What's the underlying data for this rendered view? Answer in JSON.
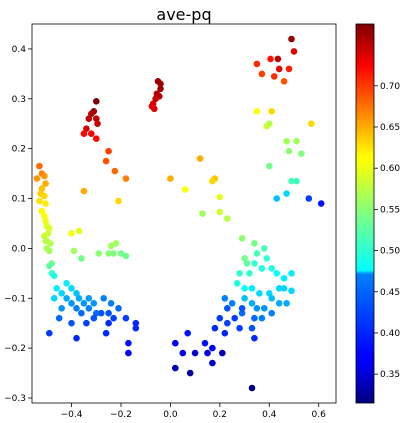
{
  "chart_data": {
    "type": "scatter",
    "title": "ave-pq",
    "xlabel": "",
    "ylabel": "",
    "xlim": [
      -0.56,
      0.67
    ],
    "ylim": [
      -0.31,
      0.45
    ],
    "xticks": [
      -0.4,
      -0.2,
      0.0,
      0.2,
      0.4,
      0.6
    ],
    "xtick_labels": [
      "−0.4",
      "−0.2",
      "0.0",
      "0.2",
      "0.4",
      "0.6"
    ],
    "yticks": [
      -0.3,
      -0.2,
      -0.1,
      0.0,
      0.1,
      0.2,
      0.3,
      0.4
    ],
    "ytick_labels": [
      "−0.3",
      "−0.2",
      "−0.1",
      "0.0",
      "0.1",
      "0.2",
      "0.3",
      "0.4"
    ],
    "grid": false,
    "colormap": "jet",
    "colorbar": {
      "min": 0.315,
      "max": 0.775,
      "ticks": [
        0.35,
        0.4,
        0.45,
        0.5,
        0.55,
        0.6,
        0.65,
        0.7
      ],
      "tick_labels": [
        "0.35",
        "0.40",
        "0.45",
        "0.50",
        "0.55",
        "0.60",
        "0.65",
        "0.70"
      ]
    },
    "points": [
      [
        0.435,
        0.38,
        0.745
      ],
      [
        0.44,
        0.36,
        0.725
      ],
      [
        0.405,
        0.38,
        0.71
      ],
      [
        0.37,
        0.35,
        0.69
      ],
      [
        0.35,
        0.37,
        0.7
      ],
      [
        0.49,
        0.42,
        0.765
      ],
      [
        0.5,
        0.395,
        0.735
      ],
      [
        0.48,
        0.36,
        0.705
      ],
      [
        0.46,
        0.335,
        0.68
      ],
      [
        0.42,
        0.345,
        0.7
      ],
      [
        -0.05,
        0.335,
        0.765
      ],
      [
        -0.04,
        0.32,
        0.76
      ],
      [
        -0.045,
        0.305,
        0.75
      ],
      [
        -0.06,
        0.3,
        0.74
      ],
      [
        -0.07,
        0.29,
        0.735
      ],
      [
        -0.065,
        0.28,
        0.73
      ],
      [
        -0.075,
        0.285,
        0.73
      ],
      [
        -0.055,
        0.31,
        0.75
      ],
      [
        -0.04,
        0.33,
        0.76
      ],
      [
        -0.3,
        0.295,
        0.775
      ],
      [
        -0.31,
        0.275,
        0.76
      ],
      [
        -0.32,
        0.27,
        0.75
      ],
      [
        -0.3,
        0.26,
        0.745
      ],
      [
        -0.33,
        0.26,
        0.745
      ],
      [
        -0.295,
        0.25,
        0.74
      ],
      [
        -0.34,
        0.24,
        0.735
      ],
      [
        -0.32,
        0.23,
        0.72
      ],
      [
        -0.3,
        0.22,
        0.715
      ],
      [
        -0.35,
        0.23,
        0.715
      ],
      [
        -0.25,
        0.195,
        0.69
      ],
      [
        -0.26,
        0.175,
        0.68
      ],
      [
        -0.225,
        0.155,
        0.67
      ],
      [
        -0.18,
        0.14,
        0.66
      ],
      [
        -0.35,
        0.115,
        0.64
      ],
      [
        -0.21,
        0.095,
        0.62
      ],
      [
        -0.53,
        0.165,
        0.67
      ],
      [
        -0.52,
        0.15,
        0.66
      ],
      [
        -0.54,
        0.14,
        0.65
      ],
      [
        -0.51,
        0.145,
        0.65
      ],
      [
        -0.505,
        0.13,
        0.64
      ],
      [
        -0.52,
        0.12,
        0.63
      ],
      [
        -0.525,
        0.11,
        0.625
      ],
      [
        -0.51,
        0.105,
        0.62
      ],
      [
        -0.53,
        0.095,
        0.615
      ],
      [
        -0.505,
        0.09,
        0.61
      ],
      [
        -0.52,
        0.075,
        0.605
      ],
      [
        -0.51,
        0.065,
        0.6
      ],
      [
        -0.505,
        0.055,
        0.595
      ],
      [
        -0.5,
        0.045,
        0.59
      ],
      [
        -0.49,
        0.04,
        0.585
      ],
      [
        -0.495,
        0.03,
        0.58
      ],
      [
        -0.51,
        0.025,
        0.58
      ],
      [
        -0.5,
        0.015,
        0.575
      ],
      [
        -0.485,
        0.01,
        0.57
      ],
      [
        -0.49,
        -0.005,
        0.56
      ],
      [
        -0.5,
        0.0,
        0.565
      ],
      [
        -0.505,
        0.015,
        0.57
      ],
      [
        -0.48,
        -0.03,
        0.54
      ],
      [
        -0.49,
        -0.035,
        0.53
      ],
      [
        -0.48,
        -0.05,
        0.51
      ],
      [
        -0.47,
        -0.055,
        0.5
      ],
      [
        0.41,
        0.275,
        0.62
      ],
      [
        0.35,
        0.275,
        0.6
      ],
      [
        0.39,
        0.245,
        0.58
      ],
      [
        0.4,
        0.25,
        0.57
      ],
      [
        0.57,
        0.25,
        0.62
      ],
      [
        0.51,
        0.215,
        0.56
      ],
      [
        0.48,
        0.195,
        0.55
      ],
      [
        0.47,
        0.215,
        0.56
      ],
      [
        0.53,
        0.19,
        0.545
      ],
      [
        0.4,
        0.165,
        0.54
      ],
      [
        0.49,
        0.135,
        0.52
      ],
      [
        0.51,
        0.135,
        0.515
      ],
      [
        0.47,
        0.11,
        0.47
      ],
      [
        0.43,
        0.1,
        0.46
      ],
      [
        0.56,
        0.1,
        0.4
      ],
      [
        0.61,
        0.09,
        0.38
      ],
      [
        0.12,
        0.18,
        0.64
      ],
      [
        0.18,
        0.14,
        0.63
      ],
      [
        0.17,
        0.135,
        0.62
      ],
      [
        0.0,
        0.14,
        0.64
      ],
      [
        0.06,
        0.118,
        0.6
      ],
      [
        0.2,
        0.103,
        0.59
      ],
      [
        0.2,
        0.073,
        0.58
      ],
      [
        0.13,
        0.07,
        0.56
      ],
      [
        -0.4,
        0.03,
        0.6
      ],
      [
        -0.37,
        0.035,
        0.59
      ],
      [
        -0.39,
        -0.005,
        0.56
      ],
      [
        -0.36,
        -0.02,
        0.54
      ],
      [
        -0.29,
        -0.01,
        0.55
      ],
      [
        -0.24,
        0.005,
        0.56
      ],
      [
        -0.22,
        0.01,
        0.56
      ],
      [
        -0.25,
        -0.01,
        0.55
      ],
      [
        -0.23,
        -0.01,
        0.545
      ],
      [
        -0.2,
        -0.01,
        0.54
      ],
      [
        -0.18,
        -0.015,
        0.54
      ],
      [
        0.23,
        0.06,
        0.57
      ],
      [
        0.29,
        0.02,
        0.55
      ],
      [
        0.34,
        0.01,
        0.54
      ],
      [
        0.38,
        0.0,
        0.52
      ],
      [
        0.35,
        -0.01,
        0.52
      ],
      [
        0.3,
        -0.02,
        0.54
      ],
      [
        0.31,
        -0.03,
        0.53
      ],
      [
        0.34,
        -0.03,
        0.51
      ],
      [
        0.37,
        -0.04,
        0.5
      ],
      [
        0.39,
        -0.02,
        0.51
      ],
      [
        0.41,
        -0.04,
        0.5
      ],
      [
        0.43,
        -0.05,
        0.49
      ],
      [
        0.46,
        -0.06,
        0.48
      ],
      [
        0.49,
        -0.05,
        0.48
      ],
      [
        0.46,
        -0.08,
        0.47
      ],
      [
        0.44,
        -0.08,
        0.47
      ],
      [
        0.49,
        -0.085,
        0.47
      ],
      [
        0.32,
        -0.05,
        0.51
      ],
      [
        0.28,
        -0.05,
        0.51
      ],
      [
        0.27,
        -0.07,
        0.5
      ],
      [
        0.3,
        -0.08,
        0.49
      ],
      [
        0.33,
        -0.08,
        0.48
      ],
      [
        0.36,
        -0.09,
        0.47
      ],
      [
        0.4,
        -0.09,
        0.47
      ],
      [
        0.41,
        -0.1,
        0.46
      ],
      [
        0.44,
        -0.11,
        0.45
      ],
      [
        0.47,
        -0.11,
        0.45
      ],
      [
        0.3,
        -0.1,
        0.46
      ],
      [
        0.33,
        -0.11,
        0.45
      ],
      [
        0.35,
        -0.12,
        0.44
      ],
      [
        0.38,
        -0.12,
        0.44
      ],
      [
        0.41,
        -0.13,
        0.43
      ],
      [
        0.37,
        -0.14,
        0.43
      ],
      [
        0.34,
        -0.14,
        0.42
      ],
      [
        0.25,
        -0.11,
        0.43
      ],
      [
        0.22,
        -0.1,
        0.43
      ],
      [
        0.29,
        -0.13,
        0.42
      ],
      [
        0.33,
        -0.16,
        0.41
      ],
      [
        0.28,
        -0.16,
        0.4
      ],
      [
        0.23,
        -0.12,
        0.41
      ],
      [
        0.2,
        -0.14,
        0.4
      ],
      [
        0.23,
        -0.15,
        0.4
      ],
      [
        0.26,
        -0.14,
        0.4
      ],
      [
        0.18,
        -0.16,
        0.39
      ],
      [
        0.22,
        -0.17,
        0.39
      ],
      [
        0.34,
        -0.18,
        0.39
      ],
      [
        0.29,
        -0.12,
        0.41
      ],
      [
        0.14,
        -0.19,
        0.38
      ],
      [
        0.17,
        -0.2,
        0.37
      ],
      [
        0.15,
        -0.21,
        0.36
      ],
      [
        0.17,
        -0.23,
        0.35
      ],
      [
        0.21,
        -0.21,
        0.34
      ],
      [
        0.1,
        -0.21,
        0.35
      ],
      [
        0.05,
        -0.21,
        0.36
      ],
      [
        0.02,
        -0.19,
        0.37
      ],
      [
        0.07,
        -0.17,
        0.38
      ],
      [
        0.02,
        -0.24,
        0.34
      ],
      [
        0.08,
        -0.25,
        0.33
      ],
      [
        0.33,
        -0.28,
        0.32
      ],
      [
        -0.46,
        -0.08,
        0.48
      ],
      [
        -0.47,
        -0.1,
        0.47
      ],
      [
        -0.44,
        -0.09,
        0.47
      ],
      [
        -0.42,
        -0.07,
        0.48
      ],
      [
        -0.4,
        -0.08,
        0.47
      ],
      [
        -0.38,
        -0.09,
        0.46
      ],
      [
        -0.37,
        -0.1,
        0.45
      ],
      [
        -0.35,
        -0.11,
        0.44
      ],
      [
        -0.33,
        -0.1,
        0.44
      ],
      [
        -0.31,
        -0.11,
        0.44
      ],
      [
        -0.42,
        -0.1,
        0.45
      ],
      [
        -0.44,
        -0.12,
        0.44
      ],
      [
        -0.4,
        -0.11,
        0.44
      ],
      [
        -0.38,
        -0.12,
        0.43
      ],
      [
        -0.36,
        -0.13,
        0.42
      ],
      [
        -0.33,
        -0.12,
        0.43
      ],
      [
        -0.3,
        -0.13,
        0.42
      ],
      [
        -0.27,
        -0.1,
        0.43
      ],
      [
        -0.24,
        -0.11,
        0.43
      ],
      [
        -0.21,
        -0.12,
        0.42
      ],
      [
        -0.25,
        -0.13,
        0.41
      ],
      [
        -0.28,
        -0.13,
        0.41
      ],
      [
        -0.23,
        -0.14,
        0.4
      ],
      [
        -0.18,
        -0.14,
        0.4
      ],
      [
        -0.14,
        -0.15,
        0.39
      ],
      [
        -0.34,
        -0.15,
        0.4
      ],
      [
        -0.31,
        -0.14,
        0.41
      ],
      [
        -0.25,
        -0.15,
        0.39
      ],
      [
        -0.45,
        -0.14,
        0.42
      ],
      [
        -0.4,
        -0.15,
        0.41
      ],
      [
        -0.49,
        -0.17,
        0.4
      ],
      [
        -0.38,
        -0.18,
        0.39
      ],
      [
        -0.26,
        -0.17,
        0.39
      ],
      [
        -0.17,
        -0.19,
        0.38
      ],
      [
        -0.17,
        -0.21,
        0.37
      ],
      [
        -0.14,
        -0.16,
        0.39
      ]
    ]
  }
}
